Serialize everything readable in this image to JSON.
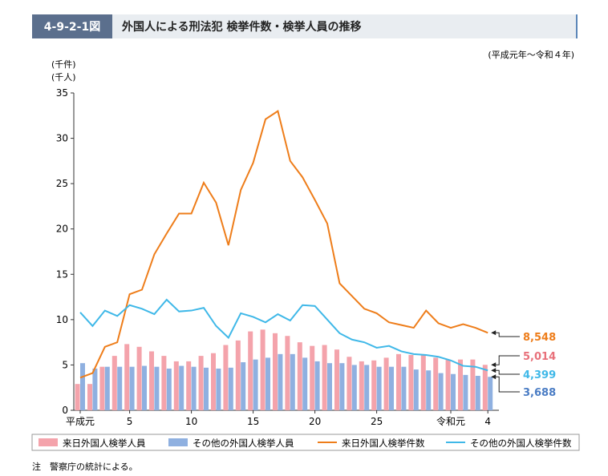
{
  "figure_number": "4-9-2-1図",
  "chart_data": {
    "type": "bar_line",
    "title": "外国人による刑法犯 検挙件数・検挙人員の推移",
    "subtitle": "(平成元年～令和４年)",
    "y_units": [
      "(千件)",
      "(千人)"
    ],
    "note": "注　警察庁の統計による。",
    "categories": [
      "平成元",
      null,
      null,
      null,
      "5",
      null,
      null,
      null,
      null,
      "10",
      null,
      null,
      null,
      null,
      "15",
      null,
      null,
      null,
      null,
      "20",
      null,
      null,
      null,
      null,
      "25",
      null,
      null,
      null,
      null,
      null,
      "令和元",
      null,
      null,
      "4"
    ],
    "ylim": [
      0,
      35
    ],
    "yticks": [
      0,
      5,
      10,
      15,
      20,
      25,
      30,
      35
    ],
    "series": [
      {
        "name": "来日外国人検挙人員",
        "kind": "bar",
        "color": "#f4a3ab",
        "label_color": "#e8707a",
        "values": [
          2.9,
          2.9,
          4.8,
          6.0,
          7.3,
          7.0,
          6.5,
          6.0,
          5.4,
          5.4,
          6.0,
          6.3,
          7.2,
          7.7,
          8.7,
          8.9,
          8.5,
          8.2,
          7.5,
          7.1,
          7.2,
          6.7,
          5.9,
          5.4,
          5.5,
          5.8,
          6.2,
          6.1,
          6.1,
          5.8,
          5.6,
          5.6,
          5.6,
          5.014
        ],
        "value_labels": [
          null,
          null,
          null,
          null,
          null,
          null,
          null,
          null,
          null,
          null,
          null,
          null,
          null,
          null,
          null,
          null,
          null,
          null,
          null,
          null,
          null,
          null,
          null,
          null,
          null,
          null,
          null,
          null,
          null,
          null,
          null,
          null,
          null,
          "5,014"
        ]
      },
      {
        "name": "その他の外国人検挙人員",
        "kind": "bar",
        "color": "#8fb0e0",
        "label_color": "#4a7cc4",
        "values": [
          5.2,
          4.6,
          4.8,
          4.8,
          4.8,
          4.9,
          4.8,
          4.6,
          4.9,
          4.8,
          4.7,
          4.6,
          4.7,
          5.3,
          5.6,
          5.8,
          6.2,
          6.2,
          5.8,
          5.4,
          5.2,
          5.2,
          5.0,
          5.0,
          4.8,
          4.8,
          4.8,
          4.5,
          4.4,
          4.1,
          4.0,
          3.9,
          3.8,
          3.688
        ],
        "value_labels": [
          null,
          null,
          null,
          null,
          null,
          null,
          null,
          null,
          null,
          null,
          null,
          null,
          null,
          null,
          null,
          null,
          null,
          null,
          null,
          null,
          null,
          null,
          null,
          null,
          null,
          null,
          null,
          null,
          null,
          null,
          null,
          null,
          null,
          "3,688"
        ]
      },
      {
        "name": "来日外国人検挙件数",
        "kind": "line",
        "color": "#ee7d1a",
        "label_color": "#ee7d1a",
        "values": [
          3.6,
          4.1,
          7.0,
          7.5,
          12.8,
          13.3,
          17.2,
          19.5,
          21.7,
          21.7,
          25.1,
          22.9,
          18.2,
          24.3,
          27.3,
          32.1,
          33.0,
          27.5,
          25.7,
          23.2,
          20.6,
          14.0,
          12.6,
          11.2,
          10.7,
          9.7,
          9.4,
          9.1,
          11.0,
          9.6,
          9.1,
          9.5,
          9.1,
          8.548
        ],
        "value_labels": [
          null,
          null,
          null,
          null,
          null,
          null,
          null,
          null,
          null,
          null,
          null,
          null,
          null,
          null,
          null,
          null,
          null,
          null,
          null,
          null,
          null,
          null,
          null,
          null,
          null,
          null,
          null,
          null,
          null,
          null,
          null,
          null,
          null,
          "8,548"
        ]
      },
      {
        "name": "その他の外国人検挙件数",
        "kind": "line",
        "color": "#3fb8e8",
        "label_color": "#3fb8e8",
        "values": [
          10.8,
          9.3,
          11.0,
          10.4,
          11.6,
          11.2,
          10.6,
          12.2,
          10.9,
          11.0,
          11.3,
          9.3,
          8.0,
          10.7,
          10.3,
          9.7,
          10.6,
          9.9,
          11.6,
          11.5,
          10.0,
          8.5,
          7.8,
          7.5,
          6.9,
          7.1,
          6.5,
          6.2,
          6.1,
          5.9,
          5.5,
          4.9,
          4.8,
          4.399
        ],
        "value_labels": [
          null,
          null,
          null,
          null,
          null,
          null,
          null,
          null,
          null,
          null,
          null,
          null,
          null,
          null,
          null,
          null,
          null,
          null,
          null,
          null,
          null,
          null,
          null,
          null,
          null,
          null,
          null,
          null,
          null,
          null,
          null,
          null,
          null,
          "4,399"
        ]
      }
    ]
  }
}
